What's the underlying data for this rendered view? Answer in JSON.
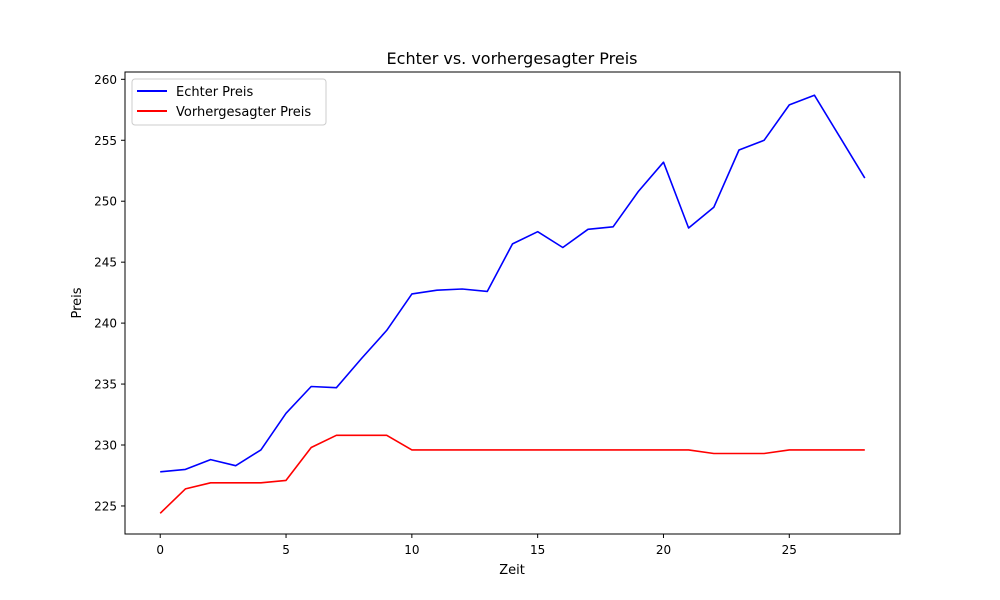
{
  "chart_data": {
    "type": "line",
    "title": "Echter vs. vorhergesagter Preis",
    "xlabel": "Zeit",
    "ylabel": "Preis",
    "xlim": [
      -1.4,
      29.4
    ],
    "ylim": [
      222.7,
      260.6
    ],
    "xticks": [
      0,
      5,
      10,
      15,
      20,
      25
    ],
    "yticks": [
      225,
      230,
      235,
      240,
      245,
      250,
      255,
      260
    ],
    "grid": false,
    "legend_position": "top-left",
    "x": [
      0,
      1,
      2,
      3,
      4,
      5,
      6,
      7,
      8,
      9,
      10,
      11,
      12,
      13,
      14,
      15,
      16,
      17,
      18,
      19,
      20,
      21,
      22,
      23,
      24,
      25,
      26,
      27,
      28
    ],
    "series": [
      {
        "name": "Echter Preis",
        "color": "#0000ff",
        "values": [
          227.8,
          228.0,
          228.8,
          228.3,
          229.6,
          232.6,
          234.8,
          234.7,
          237.1,
          239.4,
          242.4,
          242.7,
          242.8,
          242.6,
          246.5,
          247.5,
          246.2,
          247.7,
          247.9,
          250.8,
          253.2,
          247.8,
          249.5,
          254.2,
          255.0,
          257.9,
          258.7,
          255.3,
          251.9
        ]
      },
      {
        "name": "Vorhergesagter Preis",
        "color": "#ff0000",
        "values": [
          224.4,
          226.4,
          226.9,
          226.9,
          226.9,
          227.1,
          229.8,
          230.8,
          230.8,
          230.8,
          229.6,
          229.6,
          229.6,
          229.6,
          229.6,
          229.6,
          229.6,
          229.6,
          229.6,
          229.6,
          229.6,
          229.6,
          229.3,
          229.3,
          229.3,
          229.6,
          229.6,
          229.6,
          229.6
        ]
      }
    ]
  }
}
